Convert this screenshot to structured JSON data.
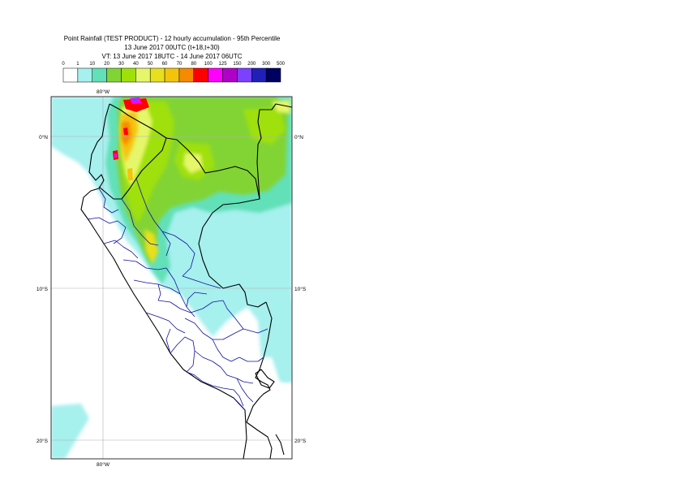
{
  "title": {
    "line1": "Point Rainfall (TEST PRODUCT) - 12 hourly accumulation - 95th Percentile",
    "line2": "13 June 2017 00UTC (t+18,t+30)",
    "line3": "VT: 13 June 2017 18UTC - 14 June 2017 06UTC"
  },
  "legend": {
    "thresholds": [
      "0",
      "1",
      "10",
      "20",
      "30",
      "40",
      "50",
      "60",
      "70",
      "80",
      "100",
      "125",
      "150",
      "200",
      "300",
      "500"
    ],
    "colors": [
      "#ffffff",
      "#a6f0ee",
      "#62e0b8",
      "#82d434",
      "#9fe00a",
      "#e6f66a",
      "#e8e01e",
      "#f4c40c",
      "#f68a00",
      "#ff0000",
      "#ff00ff",
      "#b000c8",
      "#7c40ff",
      "#2020b8",
      "#000060"
    ]
  },
  "map": {
    "lon_labels": [
      "80°W",
      "80°W"
    ],
    "lat_labels": {
      "left": [
        "0°N",
        "10°S",
        "20°S"
      ],
      "right": [
        "0°N",
        "10°S",
        "20°S"
      ]
    },
    "colors": {
      "background": "#ffffff",
      "country_border": "#000000",
      "admin_border": "#1010a0",
      "graticule": "#b0b0b0"
    }
  }
}
